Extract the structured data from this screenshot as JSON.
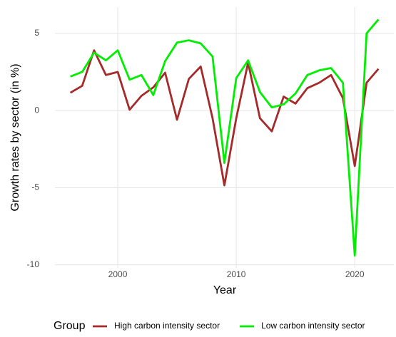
{
  "chart_data": {
    "type": "line",
    "x_label": "Year",
    "y_label": "Growth rates by sector (in %)",
    "legend_title": "Group",
    "legend_position": "bottom",
    "grid": true,
    "x": [
      1996,
      1997,
      1998,
      1999,
      2000,
      2001,
      2002,
      2003,
      2004,
      2005,
      2006,
      2007,
      2008,
      2009,
      2010,
      2011,
      2012,
      2013,
      2014,
      2015,
      2016,
      2017,
      2018,
      2019,
      2020,
      2021,
      2022
    ],
    "series": [
      {
        "name": "High carbon intensity sector",
        "color": "#a52a2a",
        "values": [
          1.15,
          1.6,
          3.9,
          2.3,
          2.5,
          0.05,
          0.95,
          1.5,
          2.45,
          -0.6,
          2.05,
          2.85,
          -0.5,
          -4.85,
          -0.5,
          3.1,
          -0.5,
          -1.35,
          0.9,
          0.45,
          1.45,
          1.8,
          2.3,
          0.8,
          -3.6,
          1.8,
          2.7
        ]
      },
      {
        "name": "Low carbon intensity sector",
        "color": "#00ee00",
        "values": [
          2.2,
          2.5,
          3.75,
          3.25,
          3.9,
          2.0,
          2.3,
          1.0,
          3.2,
          4.4,
          4.55,
          4.35,
          3.5,
          -3.4,
          2.1,
          3.25,
          1.2,
          0.2,
          0.4,
          1.1,
          2.3,
          2.6,
          2.75,
          1.8,
          -9.4,
          5.0,
          5.9
        ]
      }
    ],
    "xlim": [
      1994.7,
      2023.3
    ],
    "xticks": [
      2000,
      2010,
      2020
    ],
    "ylim": [
      -10.2,
      6.7
    ],
    "yticks": [
      -10,
      -5,
      0,
      5
    ]
  }
}
